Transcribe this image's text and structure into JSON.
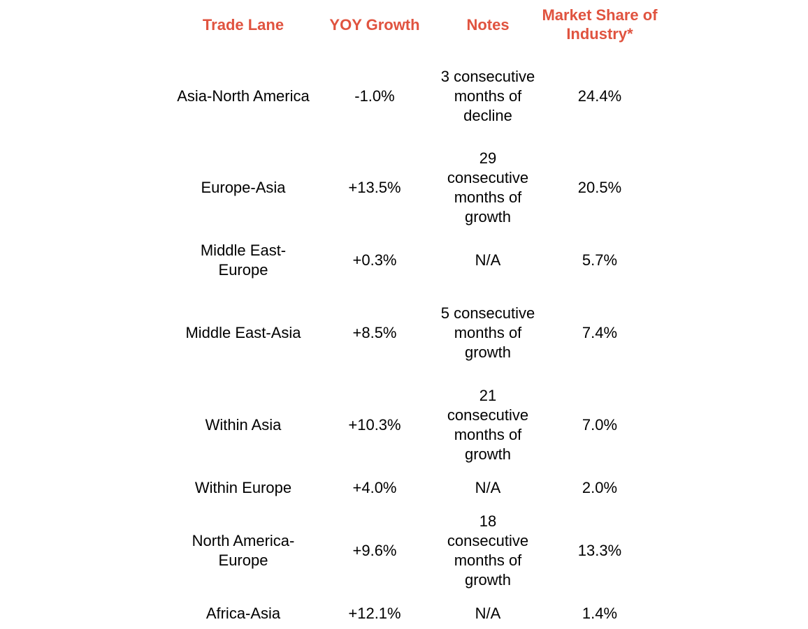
{
  "colors": {
    "header": "#e0533f",
    "text": "#000000",
    "background": "#ffffff"
  },
  "chart_data": {
    "type": "table",
    "columns": [
      "Trade Lane",
      "YOY Growth",
      "Notes",
      "Market Share of Industry*"
    ],
    "rows": [
      {
        "lane": "Asia-North America",
        "yoy": "-1.0%",
        "notes": "3 consecutive months of decline",
        "share": "24.4%"
      },
      {
        "lane": "Europe-Asia",
        "yoy": "+13.5%",
        "notes": "29 consecutive months of growth",
        "share": "20.5%"
      },
      {
        "lane": "Middle East-Europe",
        "yoy": "+0.3%",
        "notes": "N/A",
        "share": "5.7%"
      },
      {
        "lane": "Middle East-Asia",
        "yoy": "+8.5%",
        "notes": "5 consecutive months of growth",
        "share": "7.4%"
      },
      {
        "lane": "Within Asia",
        "yoy": "+10.3%",
        "notes": "21 consecutive months of growth",
        "share": "7.0%"
      },
      {
        "lane": "Within Europe",
        "yoy": "+4.0%",
        "notes": "N/A",
        "share": "2.0%"
      },
      {
        "lane": "North America-Europe",
        "yoy": "+9.6%",
        "notes": "18 consecutive months of growth",
        "share": "13.3%"
      },
      {
        "lane": "Africa-Asia",
        "yoy": "+12.1%",
        "notes": "N/A",
        "share": "1.4%"
      }
    ]
  }
}
